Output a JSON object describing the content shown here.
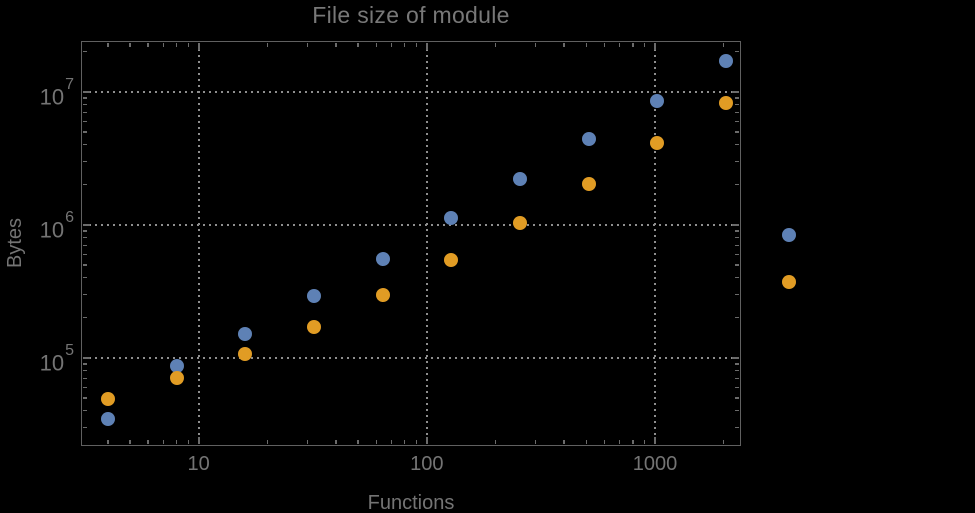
{
  "title": "File size of module",
  "chart_data": {
    "type": "scatter",
    "title": "File size of module",
    "xlabel": "Functions",
    "ylabel": "Bytes",
    "grid": "dotted",
    "legend": "none",
    "x_axis": {
      "label": "Functions",
      "scale": "log",
      "lim": [
        3.05,
        2370
      ],
      "major_ticks": [
        10,
        100,
        1000
      ],
      "major_tick_labels": [
        "10",
        "100",
        "1000"
      ],
      "minor_ticks": [
        4,
        5,
        6,
        7,
        8,
        9,
        20,
        30,
        40,
        50,
        60,
        70,
        80,
        90,
        200,
        300,
        400,
        500,
        600,
        700,
        800,
        900,
        2000
      ],
      "gridlines": [
        10,
        100,
        1000
      ]
    },
    "y_axis": {
      "label": "Bytes",
      "scale": "log",
      "lim": [
        21900,
        24100000
      ],
      "major_ticks": [
        100000,
        1000000,
        10000000
      ],
      "major_tick_labels": [
        "10^5",
        "10^6",
        "10^7"
      ],
      "minor_ticks": [
        30000,
        40000,
        50000,
        60000,
        70000,
        80000,
        90000,
        200000,
        300000,
        400000,
        500000,
        600000,
        700000,
        800000,
        900000,
        2000000,
        3000000,
        4000000,
        5000000,
        6000000,
        7000000,
        8000000,
        9000000,
        20000000
      ],
      "gridlines": [
        100000,
        1000000,
        10000000
      ]
    },
    "series": [
      {
        "name": "series-1-blue",
        "color": "#5e81b5",
        "x": [
          4,
          8,
          16,
          32,
          64,
          128,
          256,
          512,
          1024,
          2048,
          3860
        ],
        "y": [
          34800,
          86700,
          152000,
          292000,
          553000,
          1120000,
          2200000,
          4400000,
          8570000,
          17100000,
          843000
        ]
      },
      {
        "name": "series-2-orange",
        "color": "#e19c24",
        "x": [
          4,
          8,
          16,
          32,
          64,
          128,
          256,
          512,
          1024,
          2048,
          3860
        ],
        "y": [
          49200,
          70800,
          106000,
          171000,
          295000,
          546000,
          1040000,
          2040000,
          4100000,
          8180000,
          373000
        ]
      }
    ]
  },
  "colors": {
    "background": "#000000",
    "frame": "#606060",
    "gridline": "#8e8e8e",
    "tick": "#6b6b6b",
    "text": "#747474",
    "title_text": "#787878",
    "series1": "#5e81b5",
    "series2": "#e19c24"
  }
}
